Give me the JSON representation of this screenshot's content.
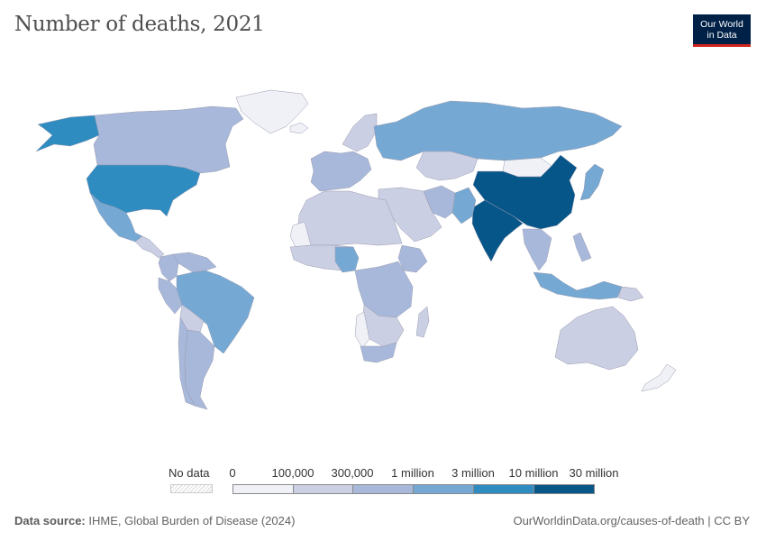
{
  "title": "Number of deaths, 2021",
  "logo": {
    "line1": "Our World",
    "line2": "in Data"
  },
  "legend": {
    "no_data_label": "No data",
    "ticks": [
      "0",
      "100,000",
      "300,000",
      "1 million",
      "3 million",
      "10 million",
      "30 million"
    ],
    "colors": [
      "#f0f0f7",
      "#cbcfe4",
      "#a7b8da",
      "#75a8d2",
      "#2f8cc1",
      "#075689"
    ]
  },
  "footer": {
    "source_label": "Data source:",
    "source_text": "IHME, Global Burden of Disease (2024)",
    "credit": "OurWorldinData.org/causes-of-death | CC BY"
  },
  "map": {
    "regions": [
      {
        "name": "Alaska (United States)",
        "bin": 4
      },
      {
        "name": "Canada",
        "bin": 2
      },
      {
        "name": "Greenland",
        "bin": 0
      },
      {
        "name": "United States",
        "bin": 4
      },
      {
        "name": "Mexico",
        "bin": 3
      },
      {
        "name": "Central America",
        "bin": 1
      },
      {
        "name": "Colombia",
        "bin": 2
      },
      {
        "name": "Venezuela",
        "bin": 2
      },
      {
        "name": "Peru",
        "bin": 2
      },
      {
        "name": "Brazil",
        "bin": 3
      },
      {
        "name": "Bolivia",
        "bin": 1
      },
      {
        "name": "Argentina",
        "bin": 2
      },
      {
        "name": "Chile",
        "bin": 2
      },
      {
        "name": "Iceland",
        "bin": 0
      },
      {
        "name": "Western Europe",
        "bin": 2
      },
      {
        "name": "Scandinavia",
        "bin": 1
      },
      {
        "name": "Russia",
        "bin": 3
      },
      {
        "name": "Kazakhstan",
        "bin": 1
      },
      {
        "name": "Mongolia",
        "bin": 0
      },
      {
        "name": "China",
        "bin": 5
      },
      {
        "name": "India",
        "bin": 5
      },
      {
        "name": "Pakistan",
        "bin": 3
      },
      {
        "name": "Middle East",
        "bin": 1
      },
      {
        "name": "Iran",
        "bin": 2
      },
      {
        "name": "Japan",
        "bin": 3
      },
      {
        "name": "Southeast Asia",
        "bin": 2
      },
      {
        "name": "Indonesia",
        "bin": 3
      },
      {
        "name": "Philippines",
        "bin": 2
      },
      {
        "name": "Northern Africa",
        "bin": 1
      },
      {
        "name": "Western Sahara",
        "bin": 0
      },
      {
        "name": "West Africa",
        "bin": 1
      },
      {
        "name": "Nigeria",
        "bin": 3
      },
      {
        "name": "Ethiopia",
        "bin": 2
      },
      {
        "name": "Central Africa",
        "bin": 2
      },
      {
        "name": "Southern Africa",
        "bin": 1
      },
      {
        "name": "South Africa",
        "bin": 2
      },
      {
        "name": "Madagascar",
        "bin": 1
      },
      {
        "name": "Australia",
        "bin": 1
      },
      {
        "name": "New Zealand",
        "bin": 0
      },
      {
        "name": "Papua New Guinea",
        "bin": 1
      },
      {
        "name": "Namibia and Botswana",
        "bin": 0
      }
    ]
  }
}
